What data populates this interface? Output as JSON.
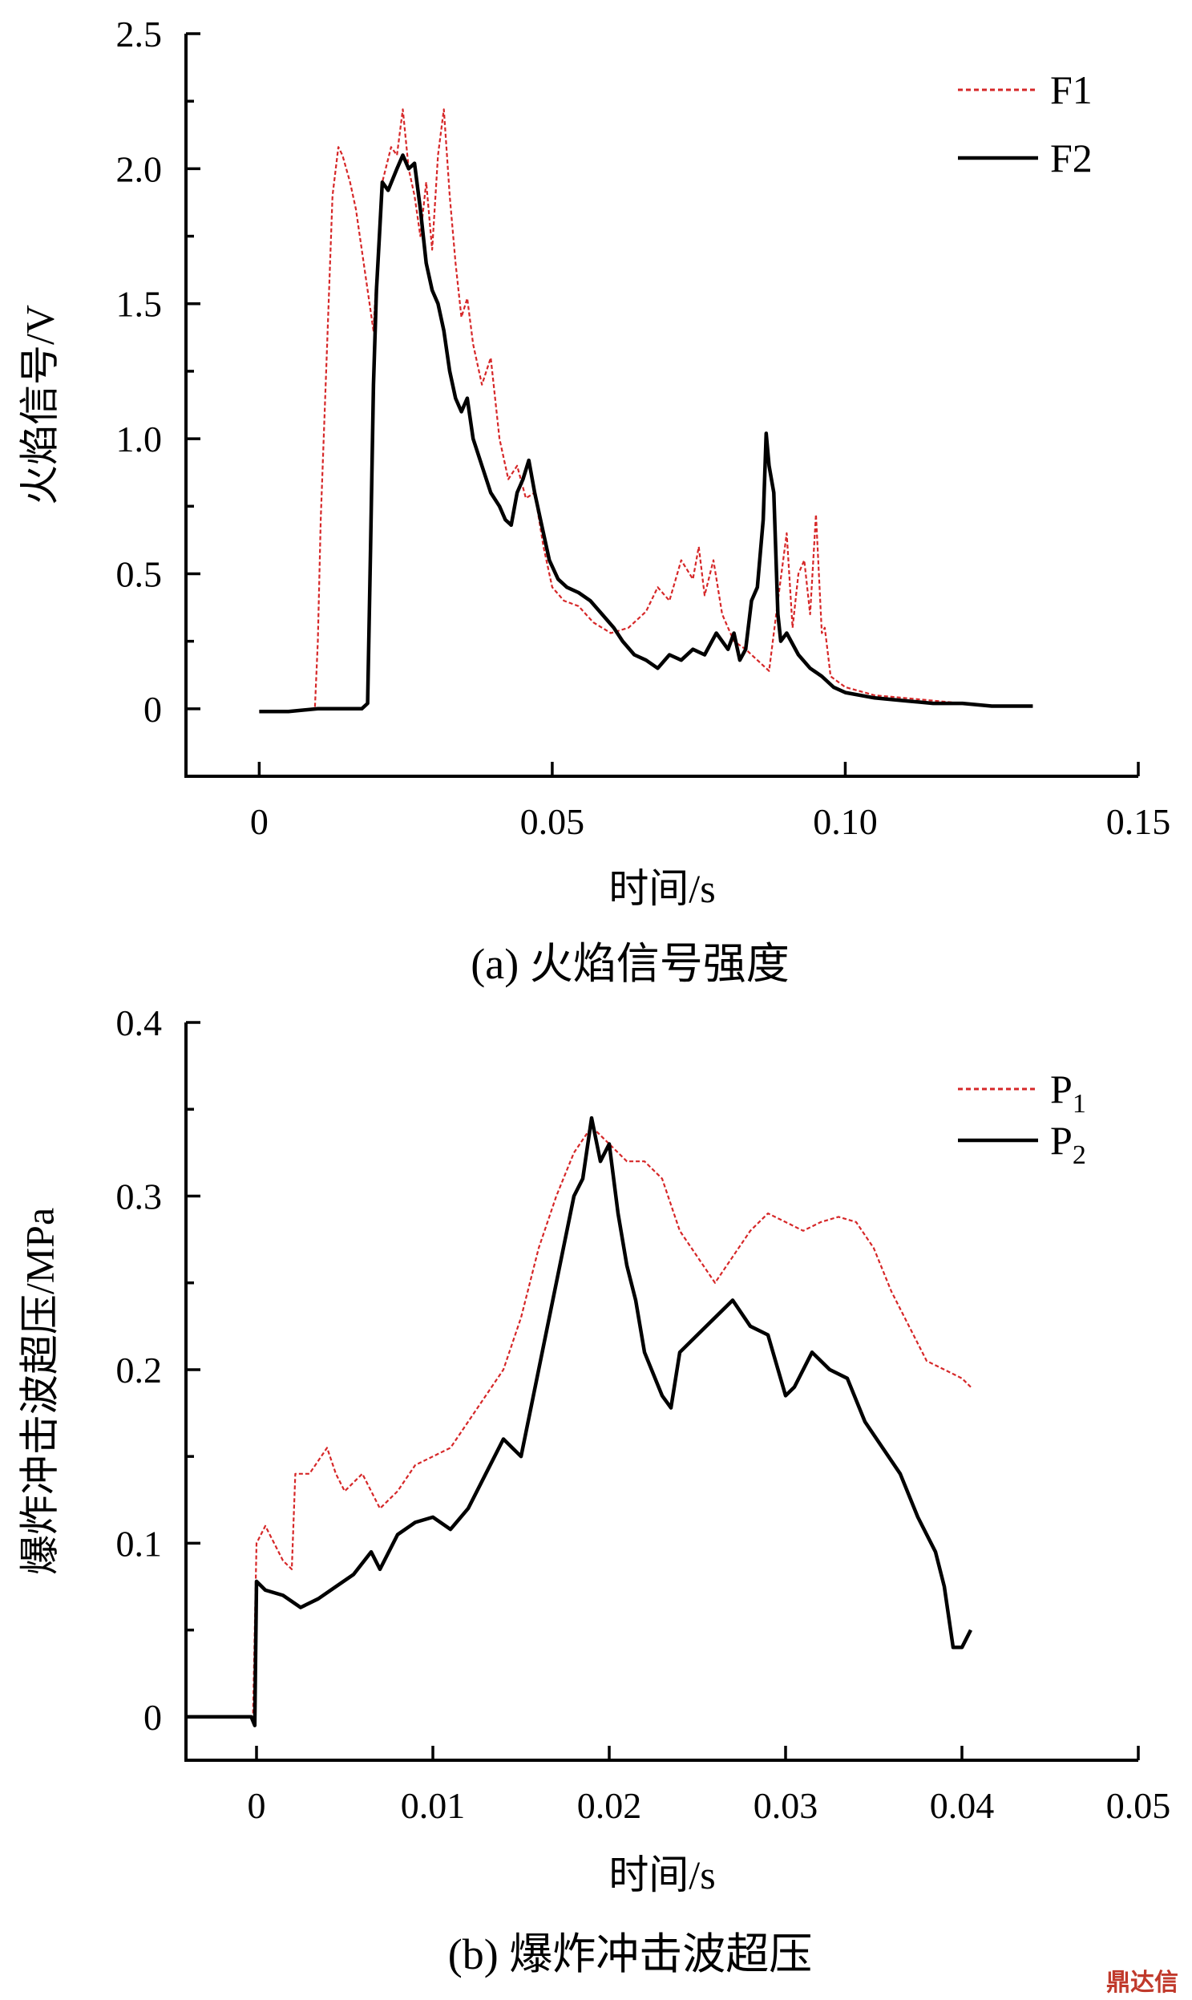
{
  "chart_data": [
    {
      "type": "line",
      "caption": "(a) 火焰信号强度",
      "xlabel": "时间/s",
      "ylabel": "火焰信号/V",
      "xlim": [
        -0.0125,
        0.15
      ],
      "ylim": [
        -0.25,
        2.5
      ],
      "xticks": [
        0,
        0.05,
        0.1,
        0.15
      ],
      "xtick_labels": [
        "0",
        "0.05",
        "0.10",
        "0.15"
      ],
      "yticks": [
        0,
        0.5,
        1.0,
        1.5,
        2.0,
        2.5
      ],
      "ytick_labels": [
        "0",
        "0.5",
        "1.0",
        "1.5",
        "2.0",
        "2.5"
      ],
      "legend_position": "top-right",
      "series": [
        {
          "name": "F1",
          "color": "#d62728",
          "style": "dashed",
          "x": [
            0,
            0.005,
            0.0095,
            0.01,
            0.0105,
            0.0115,
            0.0125,
            0.0135,
            0.0142,
            0.0155,
            0.0165,
            0.0175,
            0.0185,
            0.0195,
            0.02,
            0.021,
            0.0225,
            0.0235,
            0.0245,
            0.0255,
            0.0265,
            0.0275,
            0.0285,
            0.0295,
            0.0305,
            0.0315,
            0.0325,
            0.0335,
            0.0345,
            0.0355,
            0.0365,
            0.038,
            0.0395,
            0.041,
            0.0425,
            0.044,
            0.0455,
            0.047,
            0.0485,
            0.05,
            0.052,
            0.0545,
            0.057,
            0.06,
            0.063,
            0.066,
            0.068,
            0.07,
            0.072,
            0.074,
            0.075,
            0.076,
            0.0775,
            0.079,
            0.081,
            0.083,
            0.085,
            0.087,
            0.0885,
            0.09,
            0.091,
            0.092,
            0.093,
            0.094,
            0.095,
            0.096,
            0.0965,
            0.0975,
            0.1,
            0.105,
            0.11,
            0.115,
            0.12,
            0.125,
            0.132
          ],
          "y": [
            -0.01,
            -0.01,
            0.0,
            0.25,
            0.7,
            1.3,
            1.9,
            2.08,
            2.05,
            1.95,
            1.85,
            1.7,
            1.55,
            1.4,
            1.6,
            1.95,
            2.08,
            2.05,
            2.22,
            2.0,
            1.9,
            1.75,
            1.95,
            1.7,
            2.05,
            2.22,
            1.9,
            1.65,
            1.45,
            1.52,
            1.35,
            1.2,
            1.3,
            1.0,
            0.85,
            0.9,
            0.78,
            0.8,
            0.6,
            0.45,
            0.4,
            0.38,
            0.32,
            0.28,
            0.3,
            0.36,
            0.45,
            0.4,
            0.55,
            0.48,
            0.6,
            0.42,
            0.55,
            0.35,
            0.25,
            0.22,
            0.18,
            0.14,
            0.4,
            0.65,
            0.3,
            0.5,
            0.55,
            0.35,
            0.72,
            0.28,
            0.3,
            0.12,
            0.08,
            0.05,
            0.04,
            0.03,
            0.02,
            0.01,
            0.01
          ]
        },
        {
          "name": "F2",
          "color": "#000000",
          "style": "solid",
          "x": [
            0,
            0.005,
            0.01,
            0.015,
            0.0175,
            0.0185,
            0.019,
            0.0195,
            0.02,
            0.0205,
            0.021,
            0.022,
            0.0235,
            0.0245,
            0.0255,
            0.0265,
            0.0275,
            0.0285,
            0.0295,
            0.0305,
            0.0315,
            0.0325,
            0.0335,
            0.0345,
            0.0355,
            0.0365,
            0.038,
            0.0395,
            0.041,
            0.042,
            0.043,
            0.044,
            0.045,
            0.046,
            0.047,
            0.048,
            0.0495,
            0.051,
            0.0525,
            0.0545,
            0.0565,
            0.0585,
            0.0605,
            0.062,
            0.064,
            0.066,
            0.068,
            0.07,
            0.072,
            0.074,
            0.076,
            0.078,
            0.079,
            0.08,
            0.081,
            0.082,
            0.083,
            0.084,
            0.085,
            0.086,
            0.0865,
            0.087,
            0.0878,
            0.0885,
            0.089,
            0.09,
            0.092,
            0.094,
            0.096,
            0.098,
            0.1,
            0.105,
            0.11,
            0.115,
            0.12,
            0.125,
            0.132
          ],
          "y": [
            -0.01,
            -0.01,
            0.0,
            0.0,
            0.0,
            0.02,
            0.6,
            1.2,
            1.55,
            1.75,
            1.95,
            1.92,
            2.0,
            2.05,
            2.0,
            2.02,
            1.85,
            1.65,
            1.55,
            1.5,
            1.4,
            1.25,
            1.15,
            1.1,
            1.15,
            1.0,
            0.9,
            0.8,
            0.75,
            0.7,
            0.68,
            0.8,
            0.85,
            0.92,
            0.8,
            0.7,
            0.55,
            0.48,
            0.45,
            0.43,
            0.4,
            0.35,
            0.3,
            0.25,
            0.2,
            0.18,
            0.15,
            0.2,
            0.18,
            0.22,
            0.2,
            0.28,
            0.25,
            0.22,
            0.28,
            0.18,
            0.22,
            0.4,
            0.45,
            0.7,
            1.02,
            0.9,
            0.8,
            0.35,
            0.25,
            0.28,
            0.2,
            0.15,
            0.12,
            0.08,
            0.06,
            0.04,
            0.03,
            0.02,
            0.02,
            0.01,
            0.01
          ]
        }
      ]
    },
    {
      "type": "line",
      "caption": "(b) 爆炸冲击波超压",
      "xlabel": "时间/s",
      "ylabel": "爆炸冲击波超压/MPa",
      "xlim": [
        -0.004,
        0.05
      ],
      "ylim": [
        -0.025,
        0.4
      ],
      "xticks": [
        0,
        0.01,
        0.02,
        0.03,
        0.04,
        0.05
      ],
      "xtick_labels": [
        "0",
        "0.01",
        "0.02",
        "0.03",
        "0.04",
        "0.05"
      ],
      "yticks": [
        0,
        0.1,
        0.2,
        0.3,
        0.4
      ],
      "ytick_labels": [
        "0",
        "0.1",
        "0.2",
        "0.3",
        "0.4"
      ],
      "legend_position": "top-right",
      "series": [
        {
          "name": "P",
          "subscript": "1",
          "color": "#d62728",
          "style": "dashed",
          "x": [
            -0.004,
            -0.001,
            -0.0002,
            0.0,
            0.0005,
            0.001,
            0.0015,
            0.002,
            0.0022,
            0.003,
            0.004,
            0.0045,
            0.005,
            0.006,
            0.007,
            0.008,
            0.009,
            0.01,
            0.011,
            0.012,
            0.013,
            0.014,
            0.015,
            0.016,
            0.017,
            0.018,
            0.019,
            0.02,
            0.021,
            0.022,
            0.023,
            0.024,
            0.025,
            0.026,
            0.027,
            0.028,
            0.029,
            0.03,
            0.031,
            0.032,
            0.033,
            0.034,
            0.035,
            0.036,
            0.037,
            0.038,
            0.039,
            0.04,
            0.0405
          ],
          "y": [
            0,
            0,
            0,
            0.1,
            0.11,
            0.1,
            0.09,
            0.085,
            0.14,
            0.14,
            0.155,
            0.14,
            0.13,
            0.14,
            0.12,
            0.13,
            0.145,
            0.15,
            0.155,
            0.17,
            0.185,
            0.2,
            0.23,
            0.27,
            0.3,
            0.325,
            0.34,
            0.33,
            0.32,
            0.32,
            0.31,
            0.28,
            0.265,
            0.25,
            0.265,
            0.28,
            0.29,
            0.285,
            0.28,
            0.285,
            0.288,
            0.285,
            0.27,
            0.245,
            0.225,
            0.205,
            0.2,
            0.195,
            0.19
          ]
        },
        {
          "name": "P",
          "subscript": "2",
          "color": "#000000",
          "style": "solid",
          "x": [
            -0.004,
            -0.001,
            -0.0003,
            -0.0001,
            0.0,
            0.0005,
            0.0015,
            0.0025,
            0.0035,
            0.0045,
            0.0055,
            0.0065,
            0.007,
            0.008,
            0.009,
            0.01,
            0.011,
            0.012,
            0.013,
            0.014,
            0.015,
            0.016,
            0.017,
            0.018,
            0.0185,
            0.019,
            0.0195,
            0.02,
            0.0205,
            0.021,
            0.0215,
            0.022,
            0.023,
            0.0235,
            0.024,
            0.025,
            0.026,
            0.027,
            0.028,
            0.029,
            0.03,
            0.0305,
            0.0315,
            0.0325,
            0.0335,
            0.0345,
            0.0355,
            0.0365,
            0.0375,
            0.0385,
            0.039,
            0.0395,
            0.04,
            0.0405
          ],
          "y": [
            0,
            0,
            0,
            -0.005,
            0.078,
            0.073,
            0.07,
            0.063,
            0.068,
            0.075,
            0.082,
            0.095,
            0.085,
            0.105,
            0.112,
            0.115,
            0.108,
            0.12,
            0.14,
            0.16,
            0.15,
            0.2,
            0.25,
            0.3,
            0.31,
            0.345,
            0.32,
            0.33,
            0.29,
            0.26,
            0.24,
            0.21,
            0.185,
            0.178,
            0.21,
            0.22,
            0.23,
            0.24,
            0.225,
            0.22,
            0.185,
            0.19,
            0.21,
            0.2,
            0.195,
            0.17,
            0.155,
            0.14,
            0.115,
            0.095,
            0.075,
            0.04,
            0.04,
            0.05
          ]
        }
      ]
    }
  ],
  "watermark": "鼎达信"
}
